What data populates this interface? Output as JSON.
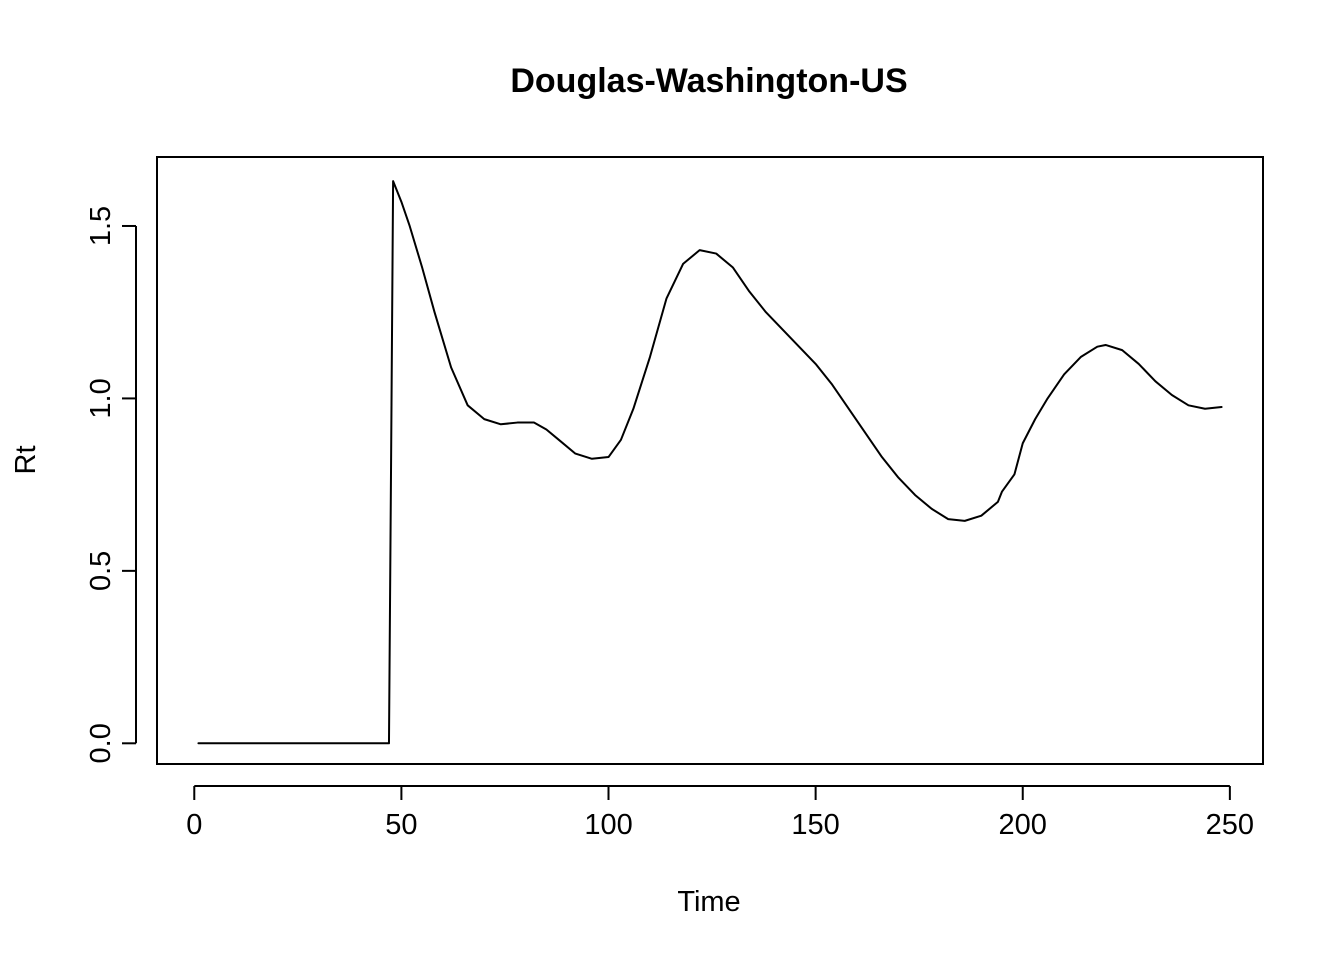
{
  "chart_data": {
    "type": "line",
    "title": "Douglas-Washington-US",
    "xlabel": "Time",
    "ylabel": "Rt",
    "xlim": [
      -9,
      258
    ],
    "ylim": [
      -0.06,
      1.7
    ],
    "x_ticks": [
      0,
      50,
      100,
      150,
      200,
      250
    ],
    "x_tick_labels": [
      "0",
      "50",
      "100",
      "150",
      "200",
      "250"
    ],
    "y_ticks": [
      0.0,
      0.5,
      1.0,
      1.5
    ],
    "y_tick_labels": [
      "0.0",
      "0.5",
      "1.0",
      "1.5"
    ],
    "grid": false,
    "legend": "none",
    "series": [
      {
        "color": "#000000",
        "x": [
          1,
          10,
          20,
          30,
          40,
          47,
          47.5,
          48,
          50,
          52,
          55,
          58,
          62,
          66,
          70,
          74,
          78,
          82,
          85,
          88,
          92,
          96,
          100,
          103,
          106,
          110,
          114,
          118,
          122,
          126,
          130,
          134,
          138,
          142,
          146,
          150,
          154,
          158,
          162,
          166,
          170,
          174,
          178,
          182,
          186,
          190,
          194,
          195,
          198,
          200,
          203,
          206,
          210,
          214,
          218,
          220,
          224,
          228,
          232,
          236,
          240,
          244,
          248
        ],
        "y": [
          0.0,
          0.0,
          0.0,
          0.0,
          0.0,
          0.0,
          0.8,
          1.63,
          1.57,
          1.5,
          1.38,
          1.25,
          1.09,
          0.98,
          0.94,
          0.925,
          0.93,
          0.93,
          0.91,
          0.88,
          0.84,
          0.825,
          0.83,
          0.88,
          0.97,
          1.12,
          1.29,
          1.39,
          1.43,
          1.42,
          1.38,
          1.31,
          1.25,
          1.2,
          1.15,
          1.1,
          1.04,
          0.97,
          0.9,
          0.83,
          0.77,
          0.72,
          0.68,
          0.65,
          0.645,
          0.66,
          0.7,
          0.73,
          0.78,
          0.87,
          0.94,
          1.0,
          1.07,
          1.12,
          1.15,
          1.155,
          1.14,
          1.1,
          1.05,
          1.01,
          0.98,
          0.97,
          0.975
        ]
      }
    ]
  }
}
